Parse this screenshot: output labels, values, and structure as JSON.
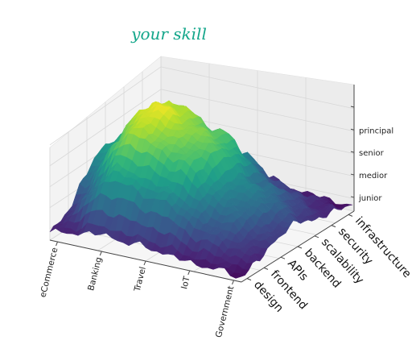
{
  "chart_data": {
    "type": "surface3d",
    "title": "your skill",
    "x_categories": [
      "eCommerce",
      "Banking",
      "Travel",
      "IoT",
      "Government"
    ],
    "y_categories": [
      "design",
      "frontend",
      "APIs",
      "backend",
      "scalability",
      "security",
      "infrastructure"
    ],
    "z_categories": [
      "junior",
      "medior",
      "senior",
      "principal"
    ],
    "colormap": "viridis",
    "colors": {
      "title": "#13a68a",
      "low": "#440154",
      "mid": "#21918c",
      "high": "#fde725"
    },
    "surface_z": [
      [
        0.3,
        0.7,
        1.6,
        2.2,
        2.0,
        1.0,
        0.4
      ],
      [
        0.6,
        2.4,
        3.6,
        4.0,
        3.7,
        2.2,
        0.8
      ],
      [
        0.5,
        2.0,
        3.0,
        3.3,
        3.0,
        1.8,
        0.6
      ],
      [
        0.3,
        1.1,
        1.6,
        1.8,
        1.4,
        0.8,
        0.3
      ],
      [
        0.2,
        0.5,
        0.7,
        0.9,
        0.6,
        0.4,
        0.2
      ]
    ],
    "grid": true
  }
}
